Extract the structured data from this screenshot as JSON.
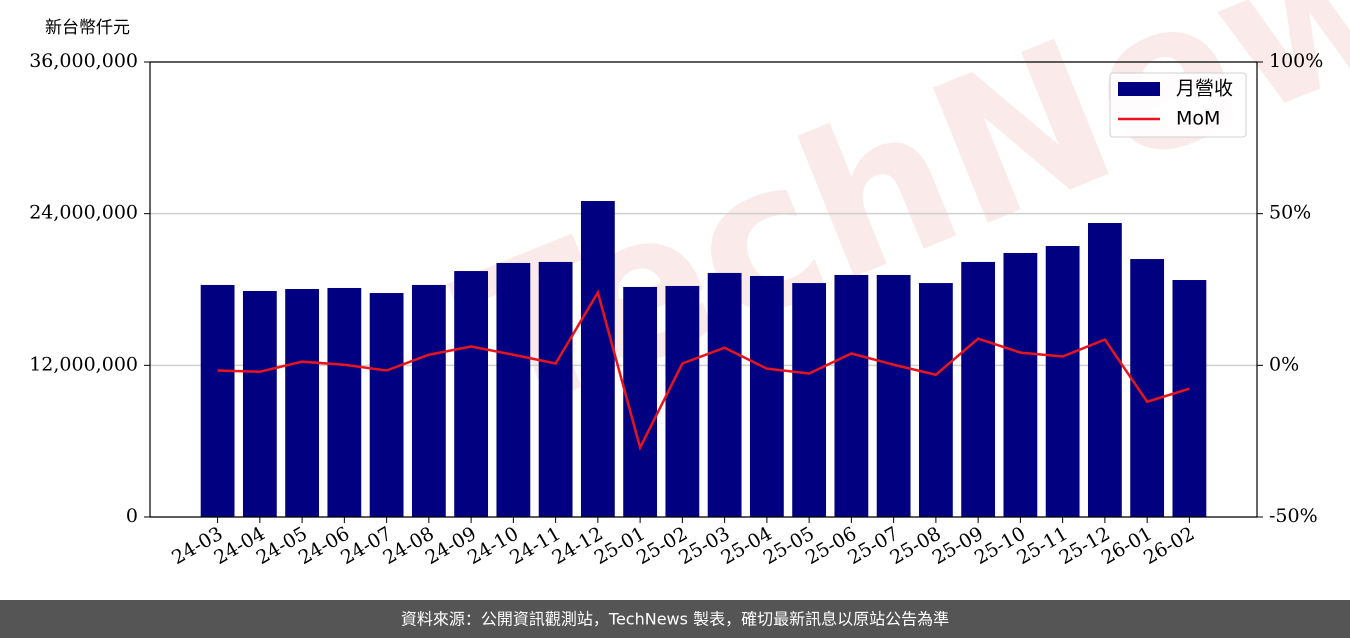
{
  "chart_data": {
    "type": "bar",
    "ylabel": "新台幣仟元",
    "watermark": "TechNews",
    "footer": "資料來源：公開資訊觀測站，TechNews 製表，確切最新訊息以原站公告為準",
    "categories": [
      "24-03",
      "24-04",
      "24-05",
      "24-06",
      "24-07",
      "24-08",
      "24-09",
      "24-10",
      "24-11",
      "24-12",
      "25-01",
      "25-02",
      "25-03",
      "25-04",
      "25-05",
      "25-06",
      "25-07",
      "25-08",
      "25-09",
      "25-10",
      "25-11",
      "25-12",
      "26-01",
      "26-02"
    ],
    "series": [
      {
        "name": "月營收",
        "type": "bar",
        "color": "#000080",
        "values": [
          18360000,
          17880000,
          18040000,
          18120000,
          17720000,
          18360000,
          19460000,
          20100000,
          20180000,
          25000000,
          18200000,
          18280000,
          19310000,
          19070000,
          18510000,
          19150000,
          19150000,
          18510000,
          20180000,
          20890000,
          21440000,
          23260000,
          20410000,
          18750000
        ]
      },
      {
        "name": "MoM",
        "type": "line",
        "axis": "y2",
        "color": "#e8141c",
        "values": [
          -1.7,
          -2.1,
          1.2,
          0.2,
          -1.7,
          3.5,
          6.2,
          3.5,
          0.6,
          24.0,
          -27.1,
          0.6,
          5.8,
          -1.1,
          -2.7,
          3.9,
          0.2,
          -3.1,
          8.8,
          4.2,
          2.9,
          8.5,
          -12.0,
          -7.7
        ]
      }
    ],
    "ylim": [
      0,
      36000000
    ],
    "yticks": [
      0,
      {
        "value": 12000000,
        "label": "12,000,000"
      },
      {
        "value": 24000000,
        "label": "24,000,000"
      },
      {
        "value": 36000000,
        "label": "36,000,000"
      }
    ],
    "y2lim": [
      -50,
      100
    ],
    "y2ticks": [
      {
        "value": -50,
        "label": "-50%"
      },
      {
        "value": 0,
        "label": "0%"
      },
      {
        "value": 50,
        "label": "50%"
      },
      {
        "value": 100,
        "label": "100%"
      }
    ],
    "grid": true,
    "legend": "upper right"
  }
}
